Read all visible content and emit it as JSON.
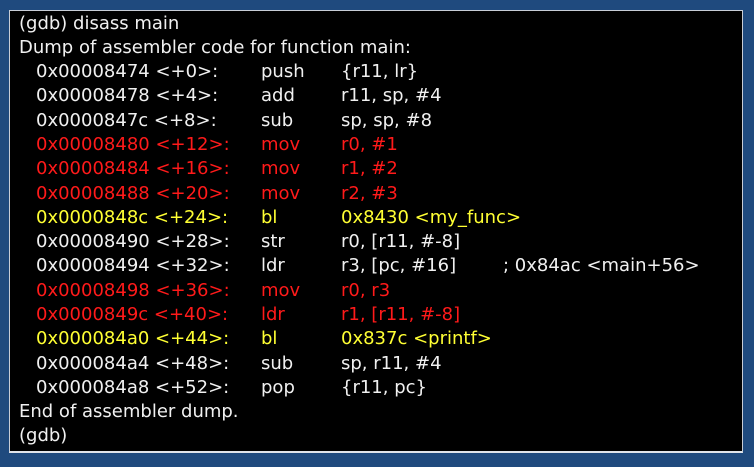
{
  "colors": {
    "background": "#1f4a7e",
    "terminal": "#000000",
    "default": "#f0f0f0",
    "red": "#ff1a1a",
    "yellow": "#ffff33"
  },
  "header": [
    "(gdb) disass main",
    "Dump of assembler code for function main:"
  ],
  "rows": [
    {
      "addr": "0x00008474 <+0>:",
      "mn": "push",
      "op": "{r11, lr}",
      "comment": "",
      "color": "default"
    },
    {
      "addr": "0x00008478 <+4>:",
      "mn": "add",
      "op": "r11, sp, #4",
      "comment": "",
      "color": "default"
    },
    {
      "addr": "0x0000847c <+8>:",
      "mn": "sub",
      "op": "sp, sp, #8",
      "comment": "",
      "color": "default"
    },
    {
      "addr": "0x00008480 <+12>:",
      "mn": "mov",
      "op": "r0, #1",
      "comment": "",
      "color": "red"
    },
    {
      "addr": "0x00008484 <+16>:",
      "mn": "mov",
      "op": "r1, #2",
      "comment": "",
      "color": "red"
    },
    {
      "addr": "0x00008488 <+20>:",
      "mn": "mov",
      "op": "r2, #3",
      "comment": "",
      "color": "red"
    },
    {
      "addr": "0x0000848c <+24>:",
      "mn": "bl",
      "op": "0x8430 <my_func>",
      "comment": "",
      "color": "yellow"
    },
    {
      "addr": "0x00008490 <+28>:",
      "mn": "str",
      "op": "r0, [r11, #-8]",
      "comment": "",
      "color": "default"
    },
    {
      "addr": "0x00008494 <+32>:",
      "mn": "ldr",
      "op": "r3, [pc, #16]",
      "comment": "; 0x84ac <main+56>",
      "color": "default"
    },
    {
      "addr": "0x00008498 <+36>:",
      "mn": "mov",
      "op": "r0, r3",
      "comment": "",
      "color": "red"
    },
    {
      "addr": "0x0000849c <+40>:",
      "mn": "ldr",
      "op": "r1, [r11, #-8]",
      "comment": "",
      "color": "red"
    },
    {
      "addr": "0x000084a0 <+44>:",
      "mn": "bl",
      "op": "0x837c <printf>",
      "comment": "",
      "color": "yellow"
    },
    {
      "addr": "0x000084a4 <+48>:",
      "mn": "sub",
      "op": "sp, r11, #4",
      "comment": "",
      "color": "default"
    },
    {
      "addr": "0x000084a8 <+52>:",
      "mn": "pop",
      "op": "{r11, pc}",
      "comment": "",
      "color": "default"
    }
  ],
  "footer": [
    "End of assembler dump.",
    "(gdb)"
  ]
}
